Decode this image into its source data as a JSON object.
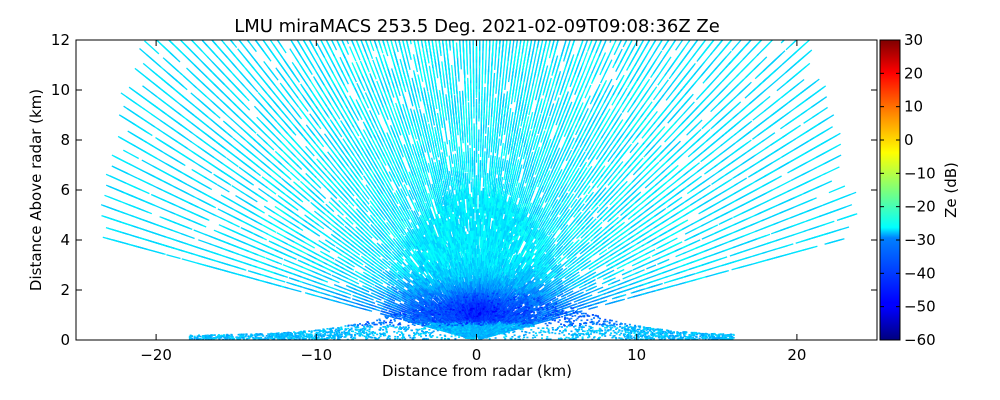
{
  "chart_data": {
    "type": "heatmap",
    "title": "LMU miraMACS 253.5 Deg. 2021-02-09T09:08:36Z  Ze",
    "xlabel": "Distance from radar (km)",
    "ylabel": "Distance Above radar  (km)",
    "xlim": [
      -25,
      25
    ],
    "ylim": [
      0,
      12
    ],
    "xticks": [
      -20,
      -10,
      0,
      10,
      20
    ],
    "xtick_labels": [
      "−20",
      "−10",
      "0",
      "10",
      "20"
    ],
    "yticks": [
      0,
      2,
      4,
      6,
      8,
      10,
      12
    ],
    "ytick_labels": [
      "0",
      "2",
      "4",
      "6",
      "8",
      "10",
      "12"
    ],
    "scan": {
      "type": "RHI",
      "elevation_range_deg": [
        10,
        170
      ],
      "max_range_km": 24
    },
    "colorbar": {
      "label": "Ze (dB)",
      "range": [
        -60,
        30
      ],
      "colormap": "jet",
      "ticks": [
        30,
        20,
        10,
        0,
        -10,
        -20,
        -30,
        -40,
        -50,
        -60
      ],
      "tick_labels": [
        "30",
        "20",
        "10",
        "0",
        "−10",
        "−20",
        "−30",
        "−40",
        "−50",
        "−60"
      ]
    },
    "grid": false,
    "legend": "none"
  }
}
